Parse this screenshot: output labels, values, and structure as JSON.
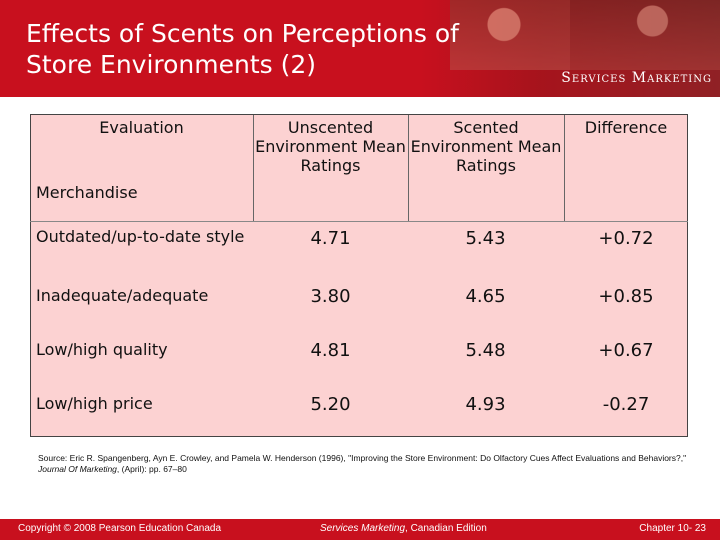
{
  "header": {
    "title_line1": "Effects of Scents on Perceptions of",
    "title_line2": "Store Environments (2)",
    "brand": "Services Marketing"
  },
  "table": {
    "headers": {
      "evaluation": "Evaluation",
      "unscented": "Unscented Environment Mean Ratings",
      "scented": "Scented Environment Mean Ratings",
      "difference": "Difference"
    },
    "section": "Merchandise",
    "rows": [
      {
        "label": "Outdated/up-to-date style",
        "unscented": "4.71",
        "scented": "5.43",
        "difference": "+0.72"
      },
      {
        "label": "Inadequate/adequate",
        "unscented": "3.80",
        "scented": "4.65",
        "difference": "+0.85"
      },
      {
        "label": "Low/high quality",
        "unscented": "4.81",
        "scented": "5.48",
        "difference": "+0.67"
      },
      {
        "label": "Low/high price",
        "unscented": "5.20",
        "scented": "4.93",
        "difference": "-0.27"
      }
    ]
  },
  "source": {
    "prefix": "Source: Eric R. Spangenberg, Ayn E. Crowley, and Pamela W. Henderson (1996), \"Improving the Store Environment: Do Olfactory Cues Affect Evaluations and Behaviors?,\"",
    "journal": "Journal Of Marketing",
    "suffix": ", (April): pp. 67–80"
  },
  "footer": {
    "copyright": "Copyright © 2008 Pearson Education Canada",
    "book_title": "Services Marketing",
    "edition": ", Canadian Edition",
    "chapter": "Chapter 10- 23"
  }
}
